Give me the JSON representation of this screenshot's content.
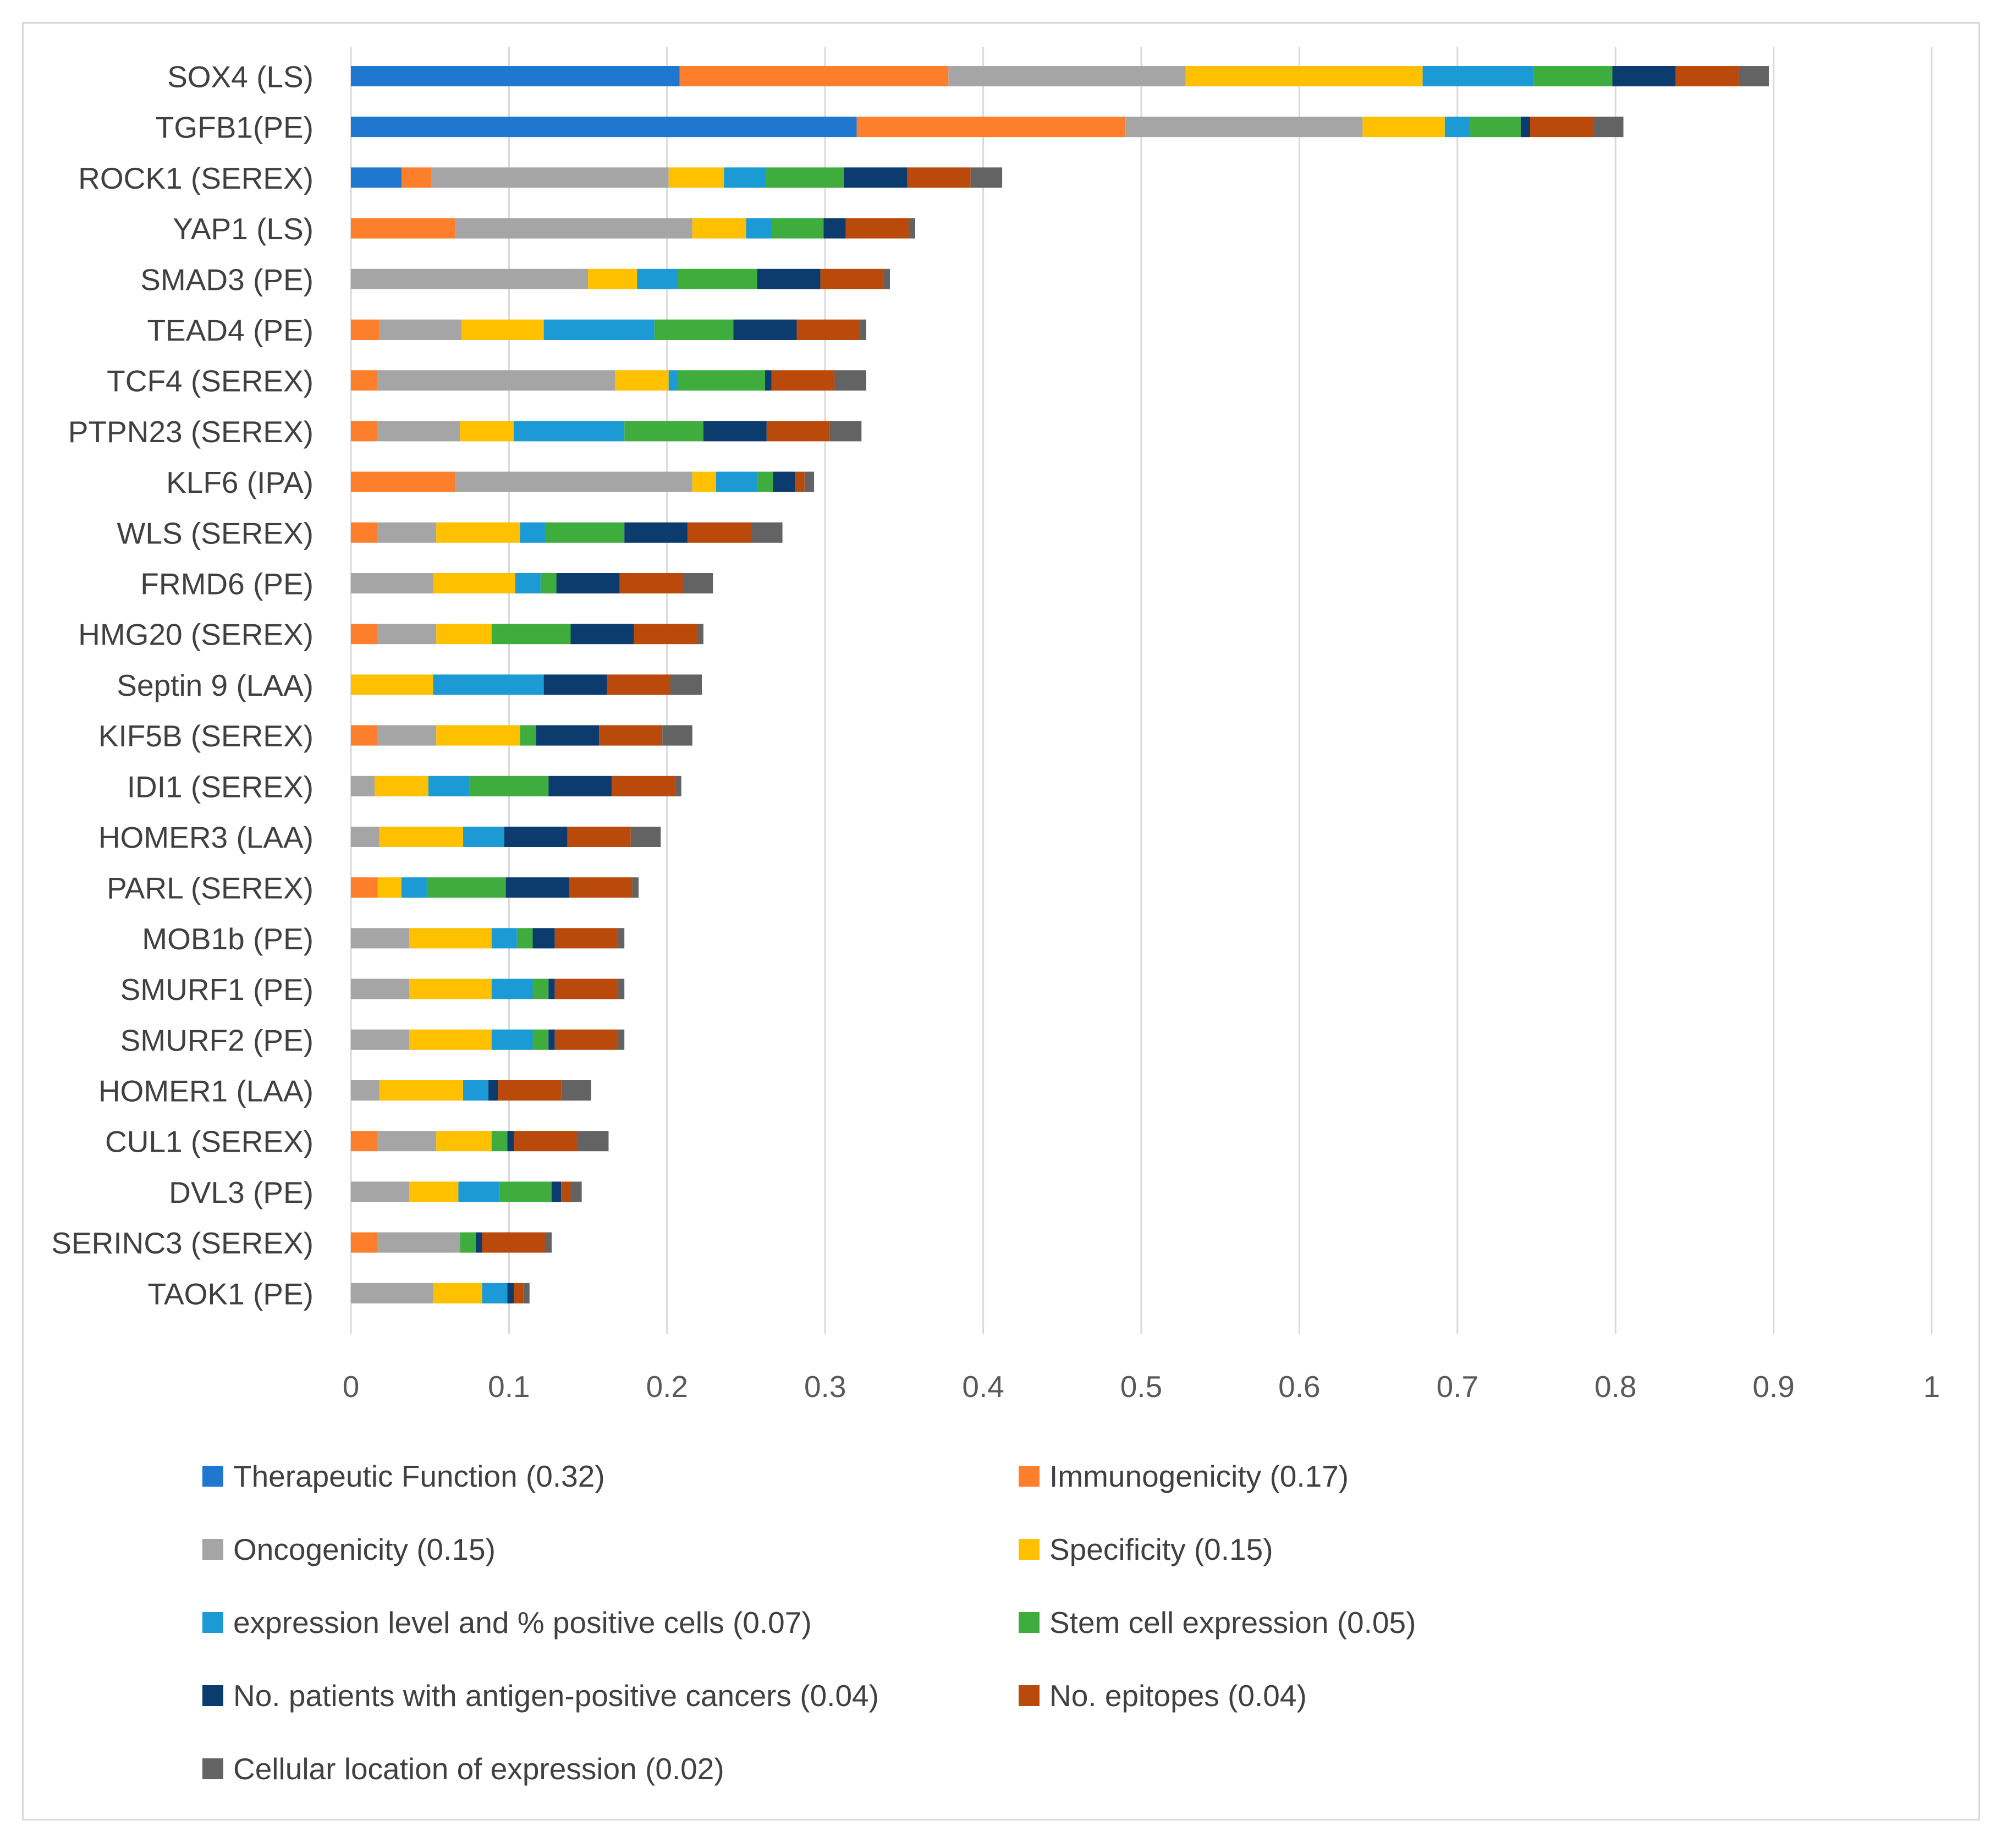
{
  "chart_data": {
    "type": "bar",
    "orientation": "horizontal",
    "stacked": true,
    "title": "",
    "xlabel": "",
    "ylabel": "",
    "xlim": [
      0,
      1
    ],
    "x_ticks": [
      "0",
      "0.1",
      "0.2",
      "0.3",
      "0.4",
      "0.5",
      "0.6",
      "0.7",
      "0.8",
      "0.9",
      "1"
    ],
    "grid": "vertical",
    "legend_position": "bottom",
    "categories": [
      "SOX4 (LS)",
      "TGFB1(PE)",
      "ROCK1 (SEREX)",
      "YAP1 (LS)",
      "SMAD3 (PE)",
      "TEAD4 (PE)",
      "TCF4 (SEREX)",
      "PTPN23 (SEREX)",
      "KLF6 (IPA)",
      "WLS (SEREX)",
      "FRMD6 (PE)",
      "HMG20 (SEREX)",
      "Septin 9 (LAA)",
      "KIF5B (SEREX)",
      "IDI1 (SEREX)",
      "HOMER3 (LAA)",
      "PARL (SEREX)",
      "MOB1b (PE)",
      "SMURF1 (PE)",
      "SMURF2 (PE)",
      "HOMER1 (LAA)",
      "CUL1 (SEREX)",
      "DVL3 (PE)",
      "SERINC3 (SEREX)",
      "TAOK1 (PE)"
    ],
    "series": [
      {
        "name": "Therapeutic Function (0.32)",
        "color": "#1f77d0",
        "values": [
          0.208,
          0.32,
          0.032,
          0,
          0,
          0,
          0,
          0,
          0,
          0,
          0,
          0,
          0,
          0,
          0,
          0,
          0,
          0,
          0,
          0,
          0,
          0,
          0,
          0,
          0
        ]
      },
      {
        "name": "Immunogenicity (0.17)",
        "color": "#fd7f2c",
        "values": [
          0.17,
          0.17,
          0.019,
          0.066,
          0,
          0.018,
          0.017,
          0.017,
          0.066,
          0.017,
          0,
          0.017,
          0,
          0.017,
          0,
          0,
          0.017,
          0,
          0,
          0,
          0,
          0.017,
          0,
          0.017,
          0
        ]
      },
      {
        "name": "Oncogenicity (0.15)",
        "color": "#a5a5a5",
        "values": [
          0.15,
          0.15,
          0.15,
          0.15,
          0.15,
          0.052,
          0.15,
          0.052,
          0.15,
          0.037,
          0.052,
          0.037,
          0,
          0.037,
          0.015,
          0.018,
          0,
          0.037,
          0.037,
          0.037,
          0.018,
          0.037,
          0.037,
          0.052,
          0.052
        ]
      },
      {
        "name": "Specificity (0.15)",
        "color": "#ffc000",
        "values": [
          0.15,
          0.052,
          0.035,
          0.034,
          0.031,
          0.052,
          0.034,
          0.034,
          0.015,
          0.053,
          0.052,
          0.035,
          0.052,
          0.053,
          0.034,
          0.053,
          0.015,
          0.052,
          0.052,
          0.052,
          0.053,
          0.035,
          0.031,
          0,
          0.031
        ]
      },
      {
        "name": "expression level and % positive cells (0.07)",
        "color": "#1b9ad6",
        "values": [
          0.07,
          0.016,
          0.026,
          0.016,
          0.026,
          0.07,
          0.006,
          0.07,
          0.026,
          0.016,
          0.016,
          0,
          0.07,
          0,
          0.026,
          0.026,
          0.016,
          0.016,
          0.026,
          0.026,
          0.016,
          0,
          0.026,
          0,
          0.016
        ]
      },
      {
        "name": "Stem cell expression (0.05)",
        "color": "#3ead3e",
        "values": [
          0.05,
          0.032,
          0.05,
          0.033,
          0.05,
          0.05,
          0.055,
          0.05,
          0.01,
          0.05,
          0.01,
          0.05,
          0,
          0.01,
          0.05,
          0,
          0.05,
          0.01,
          0.01,
          0.01,
          0,
          0.01,
          0.033,
          0.01,
          0
        ]
      },
      {
        "name": "No. patients with antigen-positive cancers (0.04)",
        "color": "#0c3b6e",
        "values": [
          0.04,
          0.006,
          0.04,
          0.014,
          0.04,
          0.04,
          0.004,
          0.04,
          0.014,
          0.04,
          0.04,
          0.04,
          0.04,
          0.04,
          0.04,
          0.04,
          0.04,
          0.014,
          0.004,
          0.004,
          0.006,
          0.004,
          0.006,
          0.004,
          0.004
        ]
      },
      {
        "name": "No. epitopes (0.04)",
        "color": "#b94a0c",
        "values": [
          0.04,
          0.04,
          0.04,
          0.04,
          0.04,
          0.04,
          0.04,
          0.04,
          0.006,
          0.04,
          0.04,
          0.04,
          0.04,
          0.04,
          0.04,
          0.04,
          0.04,
          0.04,
          0.04,
          0.04,
          0.04,
          0.04,
          0.006,
          0.04,
          0.006
        ]
      },
      {
        "name": "Cellular location of expression (0.02)",
        "color": "#636363",
        "values": [
          0.019,
          0.019,
          0.02,
          0.004,
          0.004,
          0.004,
          0.02,
          0.02,
          0.006,
          0.02,
          0.019,
          0.004,
          0.02,
          0.019,
          0.004,
          0.019,
          0.004,
          0.004,
          0.004,
          0.004,
          0.019,
          0.02,
          0.007,
          0.004,
          0.004
        ]
      }
    ]
  }
}
